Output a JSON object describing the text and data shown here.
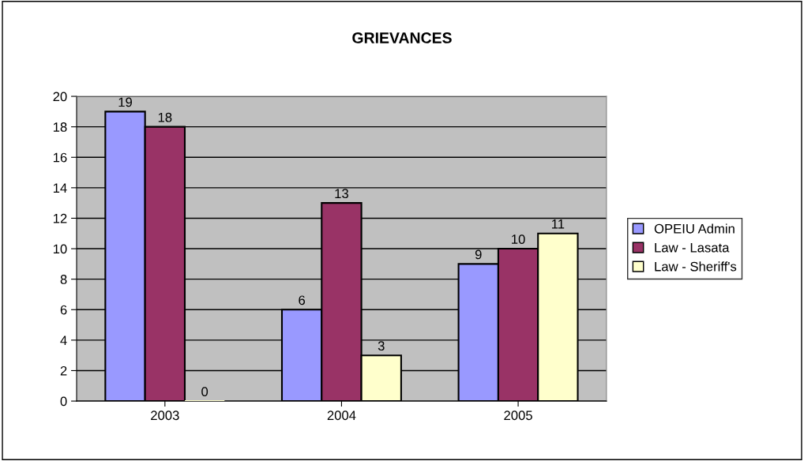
{
  "chart_data": {
    "type": "bar",
    "title": "GRIEVANCES",
    "categories": [
      "2003",
      "2004",
      "2005"
    ],
    "series": [
      {
        "name": "OPEIU Admin",
        "color": "#9999ff",
        "values": [
          19,
          6,
          9
        ]
      },
      {
        "name": "Law - Lasata",
        "color": "#993366",
        "values": [
          18,
          13,
          10
        ]
      },
      {
        "name": "Law - Sheriff's",
        "color": "#ffffcc",
        "values": [
          0,
          3,
          11
        ]
      }
    ],
    "ylim": [
      0,
      20
    ],
    "yticks": [
      0,
      2,
      4,
      6,
      8,
      10,
      12,
      14,
      16,
      18,
      20
    ],
    "grid": "y",
    "legend": "right",
    "data_labels": true
  }
}
